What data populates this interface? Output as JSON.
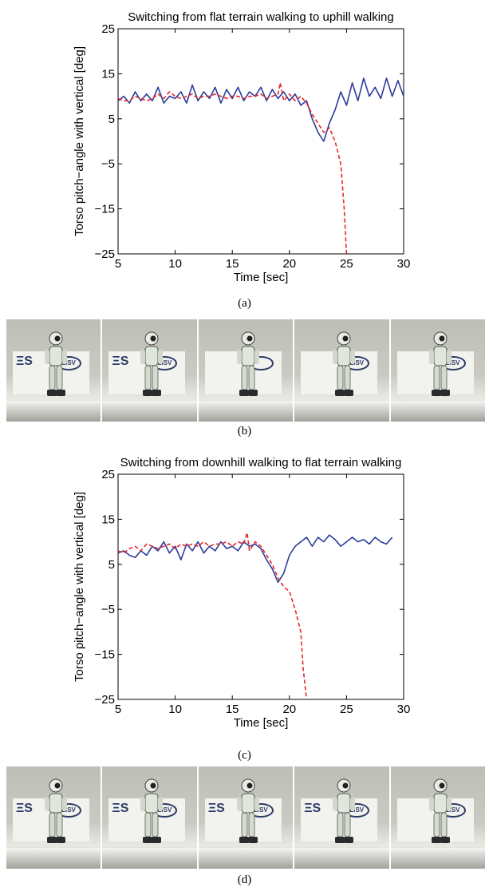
{
  "chart_data": [
    {
      "type": "line",
      "title": "Switching from flat terrain walking to uphill walking",
      "xlabel": "Time [sec]",
      "ylabel": "Torso pitch−angle with vertical [deg]",
      "xlim": [
        5,
        30
      ],
      "ylim": [
        -25,
        25
      ],
      "xticks": [
        "5",
        "10",
        "15",
        "20",
        "25",
        "30"
      ],
      "yticks": [
        "25",
        "15",
        "5",
        "−5",
        "−15",
        "−25"
      ],
      "grid": false,
      "series": [
        {
          "color": "#2b3d9a",
          "dash": "solid",
          "x": [
            5,
            5.5,
            6,
            6.5,
            7,
            7.5,
            8,
            8.5,
            9,
            9.5,
            10,
            10.5,
            11,
            11.5,
            12,
            12.5,
            13,
            13.5,
            14,
            14.5,
            15,
            15.5,
            16,
            16.5,
            17,
            17.5,
            18,
            18.5,
            19,
            19.5,
            20,
            20.5,
            21,
            21.5,
            22,
            22.5,
            23,
            23.5,
            24,
            24.5,
            25,
            25.5,
            26,
            26.5,
            27,
            27.5,
            28,
            28.5,
            29,
            29.5,
            30
          ],
          "y": [
            9,
            10,
            8.5,
            11,
            9,
            10.5,
            9,
            12,
            8.5,
            10,
            9.5,
            11,
            8.5,
            12.5,
            9,
            11,
            9.5,
            12,
            8.5,
            11.5,
            9.5,
            12,
            9,
            11,
            10,
            12,
            9,
            11.5,
            9.5,
            11,
            9,
            10.5,
            8,
            9,
            5,
            2,
            0,
            4,
            7,
            11,
            8,
            13,
            9,
            14,
            10,
            12,
            9.5,
            14,
            10,
            13.5,
            10
          ]
        },
        {
          "color": "#e8262a",
          "dash": "dashed",
          "x": [
            5,
            5.5,
            6,
            6.5,
            7,
            7.5,
            8,
            8.5,
            9,
            9.5,
            10,
            10.5,
            11,
            11.5,
            12,
            12.5,
            13,
            13.5,
            14,
            14.5,
            15,
            15.5,
            16,
            16.5,
            17,
            17.5,
            18,
            18.5,
            19,
            19.2,
            19.5,
            20,
            20.5,
            21,
            21.5,
            22,
            22.5,
            23,
            23.5,
            24,
            24.5,
            24.8,
            25
          ],
          "y": [
            9.5,
            9,
            9,
            10,
            9.5,
            9,
            9.5,
            10.5,
            9.5,
            11,
            10,
            9.5,
            10,
            10.5,
            9.5,
            10,
            10,
            10.5,
            10,
            9.5,
            10,
            10,
            9.5,
            10,
            10,
            10.5,
            9.5,
            10,
            10.5,
            13,
            9,
            10.5,
            9,
            10,
            8.5,
            6,
            4,
            2,
            3,
            0,
            -5,
            -15,
            -25
          ]
        }
      ]
    },
    {
      "type": "line",
      "title": "Switching from downhill walking to flat terrain walking",
      "xlabel": "Time [sec]",
      "ylabel": "Torso pitch−angle with vertical [deg]",
      "xlim": [
        5,
        30
      ],
      "ylim": [
        -25,
        25
      ],
      "xticks": [
        "5",
        "10",
        "15",
        "20",
        "25",
        "30"
      ],
      "yticks": [
        "25",
        "15",
        "5",
        "−5",
        "−15",
        "−25"
      ],
      "grid": false,
      "series": [
        {
          "color": "#2b3d9a",
          "dash": "solid",
          "x": [
            5,
            5.5,
            6,
            6.5,
            7,
            7.5,
            8,
            8.5,
            9,
            9.5,
            10,
            10.5,
            11,
            11.5,
            12,
            12.5,
            13,
            13.5,
            14,
            14.5,
            15,
            15.5,
            16,
            16.5,
            17,
            17.5,
            18,
            18.5,
            19,
            19.5,
            20,
            20.5,
            21,
            21.5,
            22,
            22.5,
            23,
            23.5,
            24,
            24.5,
            25,
            25.5,
            26,
            26.5,
            27,
            27.5,
            28,
            28.5,
            29
          ],
          "y": [
            7.5,
            8,
            7,
            6.5,
            8,
            7,
            9,
            8,
            10,
            7.5,
            9,
            6,
            9.5,
            8,
            10,
            7.5,
            9,
            8,
            10,
            8.5,
            9,
            8,
            10,
            9,
            9.5,
            8.5,
            6,
            4,
            1,
            3,
            7,
            9,
            10,
            11,
            9,
            11,
            10,
            11.5,
            10.5,
            9,
            10,
            11,
            10,
            10.5,
            9.5,
            11,
            10,
            9.5,
            11
          ]
        },
        {
          "color": "#e8262a",
          "dash": "dashed",
          "x": [
            5,
            5.5,
            6,
            6.5,
            7,
            7.5,
            8,
            8.5,
            9,
            9.5,
            10,
            10.5,
            11,
            11.5,
            12,
            12.5,
            13,
            13.5,
            14,
            14.5,
            15,
            15.5,
            16,
            16.3,
            16.5,
            17,
            17.5,
            18,
            18.5,
            19,
            19.5,
            20,
            20.5,
            21,
            21.2,
            21.5
          ],
          "y": [
            8,
            7.5,
            8.5,
            9,
            8,
            9.5,
            9,
            8.5,
            9,
            9.5,
            8.5,
            9.5,
            9,
            9.5,
            9,
            10,
            9,
            9.5,
            9.5,
            10,
            9,
            10,
            9.5,
            12,
            8,
            10,
            9,
            7,
            5,
            2,
            0,
            -1,
            -5,
            -10,
            -18,
            -25
          ]
        }
      ]
    }
  ],
  "captions": {
    "a": "(a)",
    "b": "(b)",
    "c": "(c)",
    "d": "(d)"
  },
  "photo_strips": [
    {
      "frames": [
        {
          "logo": "ΞS",
          "badge": "LISV"
        },
        {
          "logo": "ΞS",
          "badge": "LISV"
        },
        {
          "logo": "",
          "badge": ""
        },
        {
          "logo": "",
          "badge": "LISV"
        },
        {
          "logo": "",
          "badge": "LISV"
        }
      ]
    },
    {
      "frames": [
        {
          "logo": "ΞS",
          "badge": "LISV"
        },
        {
          "logo": "ΞS",
          "badge": "LISV"
        },
        {
          "logo": "ΞS",
          "badge": "LISV"
        },
        {
          "logo": "ΞS",
          "badge": "LISV"
        },
        {
          "logo": "",
          "badge": "LISV"
        }
      ]
    }
  ]
}
